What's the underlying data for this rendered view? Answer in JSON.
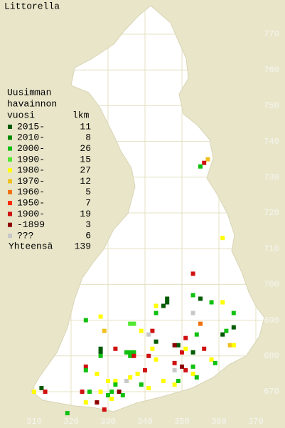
{
  "title": "Littorella",
  "legend": {
    "header": [
      "Uusimman",
      "havainnon",
      "vuosi"
    ],
    "count_header": "lkm",
    "entries": [
      {
        "label": "2015-",
        "count": 11,
        "color": "#005a00"
      },
      {
        "label": "2010-",
        "count": 8,
        "color": "#008a00"
      },
      {
        "label": "2000-",
        "count": 26,
        "color": "#10c010"
      },
      {
        "label": "1990-",
        "count": 15,
        "color": "#50e830"
      },
      {
        "label": "1980-",
        "count": 27,
        "color": "#ffff00"
      },
      {
        "label": "1970-",
        "count": 12,
        "color": "#f0c020"
      },
      {
        "label": "1960-",
        "count": 5,
        "color": "#f07010"
      },
      {
        "label": "1950-",
        "count": 7,
        "color": "#ff2a00"
      },
      {
        "label": "1900-",
        "count": 19,
        "color": "#d01010"
      },
      {
        "label": "-1899",
        "count": 3,
        "color": "#8c0000"
      },
      {
        "label": "???",
        "count": 6,
        "color": "#c8c8c8"
      }
    ],
    "total_label": "Yhteensä",
    "total": 139
  },
  "xticks": [
    310,
    320,
    330,
    340,
    350,
    360,
    370
  ],
  "yticks": [
    670,
    680,
    690,
    700,
    710,
    720,
    730,
    740,
    750,
    760,
    770
  ],
  "squares": [
    {
      "x": 357,
      "y": 735,
      "period": 5
    },
    {
      "x": 356,
      "y": 734,
      "period": 8
    },
    {
      "x": 355,
      "y": 733,
      "period": 2
    },
    {
      "x": 361,
      "y": 713,
      "period": 4
    },
    {
      "x": 353,
      "y": 703,
      "period": 8
    },
    {
      "x": 346,
      "y": 696,
      "period": 0
    },
    {
      "x": 345,
      "y": 694,
      "period": 0
    },
    {
      "x": 346,
      "y": 695,
      "period": 0
    },
    {
      "x": 353,
      "y": 697,
      "period": 2
    },
    {
      "x": 355,
      "y": 696,
      "period": 0
    },
    {
      "x": 343,
      "y": 694,
      "period": 4
    },
    {
      "x": 353,
      "y": 692,
      "period": 10
    },
    {
      "x": 343,
      "y": 692,
      "period": 2
    },
    {
      "x": 358,
      "y": 695,
      "period": 2
    },
    {
      "x": 361,
      "y": 695,
      "period": 4
    },
    {
      "x": 364,
      "y": 692,
      "period": 2
    },
    {
      "x": 324,
      "y": 690,
      "period": 2
    },
    {
      "x": 328,
      "y": 691,
      "period": 4
    },
    {
      "x": 336,
      "y": 689,
      "period": 3
    },
    {
      "x": 337,
      "y": 689,
      "period": 3
    },
    {
      "x": 355,
      "y": 689,
      "period": 6
    },
    {
      "x": 364,
      "y": 688,
      "period": 0
    },
    {
      "x": 342,
      "y": 687,
      "period": 8
    },
    {
      "x": 339,
      "y": 687,
      "period": 4
    },
    {
      "x": 329,
      "y": 687,
      "period": 5
    },
    {
      "x": 362,
      "y": 687,
      "period": 2
    },
    {
      "x": 361,
      "y": 686,
      "period": 0
    },
    {
      "x": 351,
      "y": 685,
      "period": 8
    },
    {
      "x": 354,
      "y": 686,
      "period": 2
    },
    {
      "x": 343,
      "y": 684,
      "period": 0
    },
    {
      "x": 341,
      "y": 686,
      "period": 10
    },
    {
      "x": 363,
      "y": 683,
      "period": 5
    },
    {
      "x": 332,
      "y": 682,
      "period": 8
    },
    {
      "x": 328,
      "y": 682,
      "period": 0
    },
    {
      "x": 328,
      "y": 681,
      "period": 0
    },
    {
      "x": 335,
      "y": 681,
      "period": 2
    },
    {
      "x": 336,
      "y": 681,
      "period": 2
    },
    {
      "x": 337,
      "y": 681,
      "period": 2
    },
    {
      "x": 336,
      "y": 680,
      "period": 2
    },
    {
      "x": 337,
      "y": 680,
      "period": 8
    },
    {
      "x": 341,
      "y": 680,
      "period": 8
    },
    {
      "x": 342,
      "y": 682,
      "period": 4
    },
    {
      "x": 349,
      "y": 683,
      "period": 0
    },
    {
      "x": 348,
      "y": 683,
      "period": 9
    },
    {
      "x": 350,
      "y": 681,
      "period": 8
    },
    {
      "x": 353,
      "y": 681,
      "period": 0
    },
    {
      "x": 356,
      "y": 682,
      "period": 8
    },
    {
      "x": 351,
      "y": 682,
      "period": 4
    },
    {
      "x": 358,
      "y": 679,
      "period": 4
    },
    {
      "x": 359,
      "y": 678,
      "period": 2
    },
    {
      "x": 364,
      "y": 683,
      "period": 4
    },
    {
      "x": 328,
      "y": 680,
      "period": 2
    },
    {
      "x": 324,
      "y": 677,
      "period": 8
    },
    {
      "x": 324,
      "y": 676,
      "period": 2
    },
    {
      "x": 327,
      "y": 675,
      "period": 4
    },
    {
      "x": 340,
      "y": 676,
      "period": 8
    },
    {
      "x": 343,
      "y": 679,
      "period": 4
    },
    {
      "x": 348,
      "y": 678,
      "period": 8
    },
    {
      "x": 351,
      "y": 676,
      "period": 8
    },
    {
      "x": 353,
      "y": 677,
      "period": 2
    },
    {
      "x": 353,
      "y": 675,
      "period": 4
    },
    {
      "x": 348,
      "y": 676,
      "period": 10
    },
    {
      "x": 338,
      "y": 675,
      "period": 4
    },
    {
      "x": 332,
      "y": 673,
      "period": 4
    },
    {
      "x": 332,
      "y": 672,
      "period": 2
    },
    {
      "x": 335,
      "y": 673,
      "period": 10
    },
    {
      "x": 336,
      "y": 674,
      "period": 4
    },
    {
      "x": 330,
      "y": 673,
      "period": 4
    },
    {
      "x": 330,
      "y": 669,
      "period": 2
    },
    {
      "x": 331,
      "y": 670,
      "period": 2
    },
    {
      "x": 333,
      "y": 670,
      "period": 9
    },
    {
      "x": 334,
      "y": 669,
      "period": 2
    },
    {
      "x": 331,
      "y": 668,
      "period": 4
    },
    {
      "x": 329,
      "y": 665,
      "period": 8
    },
    {
      "x": 339,
      "y": 672,
      "period": 2
    },
    {
      "x": 341,
      "y": 671,
      "period": 4
    },
    {
      "x": 345,
      "y": 673,
      "period": 4
    },
    {
      "x": 348,
      "y": 672,
      "period": 4
    },
    {
      "x": 349,
      "y": 673,
      "period": 2
    },
    {
      "x": 354,
      "y": 674,
      "period": 2
    },
    {
      "x": 350,
      "y": 677,
      "period": 9
    },
    {
      "x": 323,
      "y": 670,
      "period": 8
    },
    {
      "x": 312,
      "y": 671,
      "period": 0
    },
    {
      "x": 313,
      "y": 670,
      "period": 8
    },
    {
      "x": 310,
      "y": 670,
      "period": 4
    },
    {
      "x": 319,
      "y": 664,
      "period": 2
    },
    {
      "x": 324,
      "y": 667,
      "period": 4
    },
    {
      "x": 325,
      "y": 670,
      "period": 2
    },
    {
      "x": 327,
      "y": 667,
      "period": 9
    },
    {
      "x": 328,
      "y": 670,
      "period": 4
    }
  ]
}
